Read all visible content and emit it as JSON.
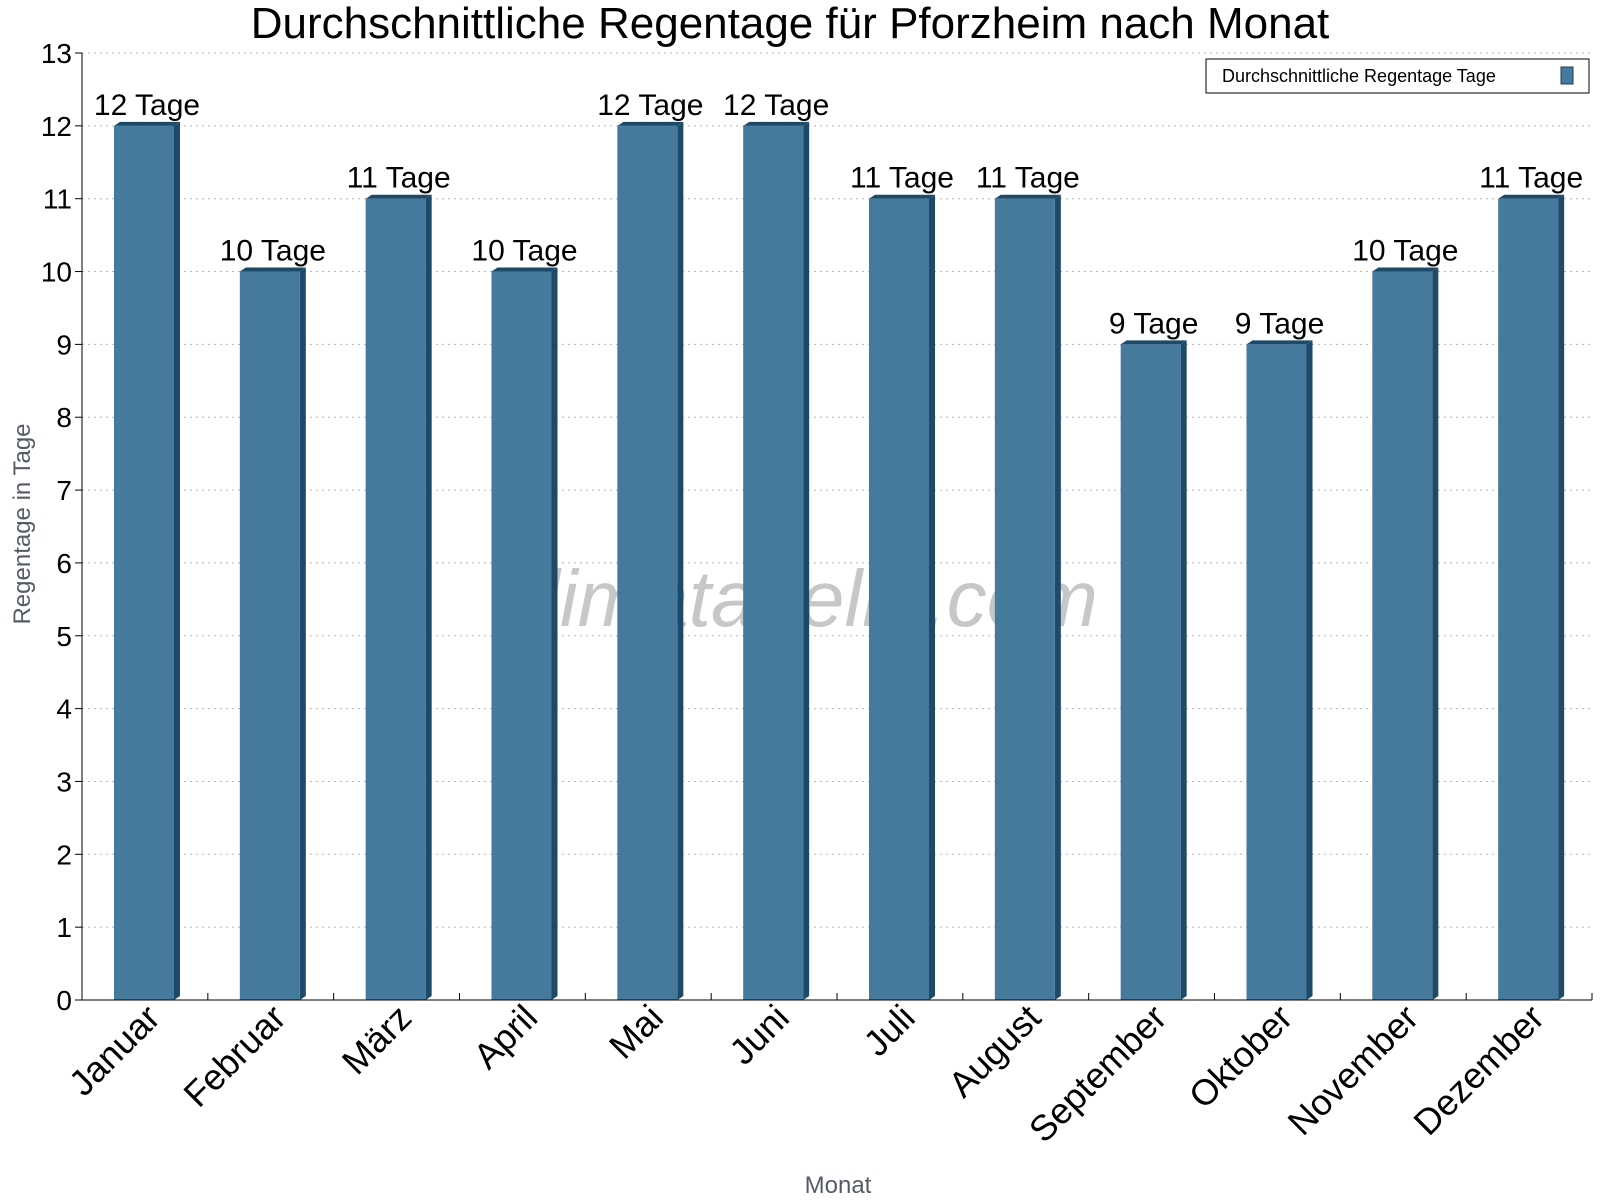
{
  "chart_data": {
    "type": "bar",
    "title": "Durchschnittliche Regentage für Pforzheim nach Monat",
    "xlabel": "Monat",
    "ylabel": "Regentage in Tage",
    "categories": [
      "Januar",
      "Februar",
      "März",
      "April",
      "Mai",
      "Juni",
      "Juli",
      "August",
      "September",
      "Oktober",
      "November",
      "Dezember"
    ],
    "series": [
      {
        "name": "Durchschnittliche Regentage Tage",
        "values": [
          12,
          10,
          11,
          10,
          12,
          12,
          11,
          11,
          9,
          9,
          10,
          11
        ],
        "labels": [
          "12 Tage",
          "10 Tage",
          "11 Tage",
          "10 Tage",
          "12 Tage",
          "12 Tage",
          "11 Tage",
          "11 Tage",
          "9 Tage",
          "9 Tage",
          "10 Tage",
          "11 Tage"
        ],
        "color": "#457a9c"
      }
    ],
    "ylim": [
      0,
      13
    ],
    "yticks": [
      "0",
      "1",
      "2",
      "3",
      "4",
      "5",
      "6",
      "7",
      "8",
      "9",
      "10",
      "11",
      "12",
      "13"
    ],
    "grid": true,
    "legend_position": "top-right",
    "watermark": "klimatabelle.com"
  }
}
